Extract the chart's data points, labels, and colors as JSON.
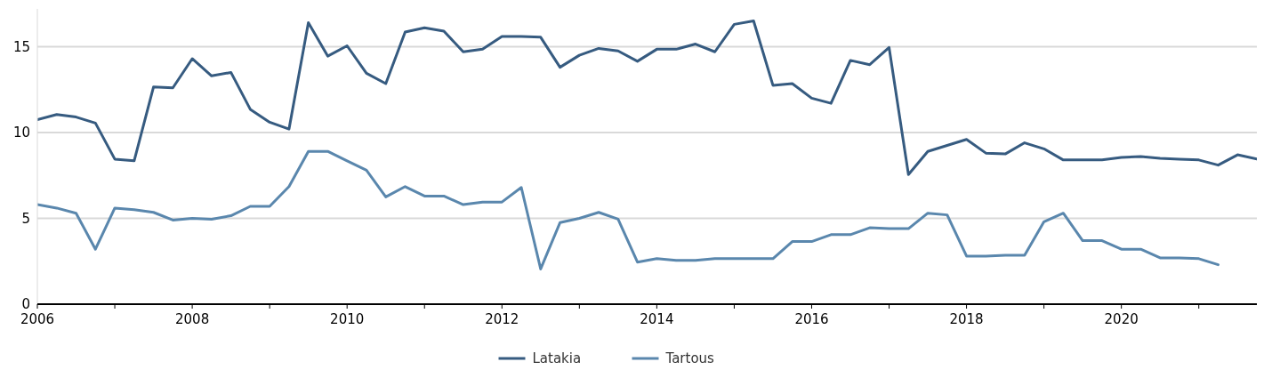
{
  "chart_data": {
    "type": "line",
    "x": [
      2006,
      2006.25,
      2006.5,
      2006.75,
      2007,
      2007.25,
      2007.5,
      2007.75,
      2008,
      2008.25,
      2008.5,
      2008.75,
      2009,
      2009.25,
      2009.5,
      2009.75,
      2010,
      2010.25,
      2010.5,
      2010.75,
      2011,
      2011.25,
      2011.5,
      2011.75,
      2012,
      2012.25,
      2012.5,
      2012.75,
      2013,
      2013.25,
      2013.5,
      2013.75,
      2014,
      2014.25,
      2014.5,
      2014.75,
      2015,
      2015.25,
      2015.5,
      2015.75,
      2016,
      2016.25,
      2016.5,
      2016.75,
      2017,
      2017.25,
      2017.5,
      2017.75,
      2018,
      2018.25,
      2018.5,
      2018.75,
      2019,
      2019.25,
      2019.5,
      2019.75,
      2020,
      2020.25,
      2020.5,
      2020.75,
      2021,
      2021.25,
      2021.5,
      2021.75
    ],
    "series": [
      {
        "name": "Latakia",
        "color": "#365b80",
        "values": [
          10.75,
          11.05,
          10.9,
          10.55,
          8.45,
          8.35,
          12.65,
          12.6,
          14.3,
          13.3,
          13.5,
          11.35,
          10.6,
          10.2,
          16.4,
          14.45,
          15.05,
          13.45,
          12.85,
          15.85,
          16.1,
          15.9,
          14.7,
          14.85,
          15.6,
          15.6,
          15.55,
          13.8,
          14.5,
          14.9,
          14.75,
          14.15,
          14.85,
          14.85,
          15.15,
          14.7,
          16.3,
          16.5,
          12.75,
          12.85,
          12.0,
          11.7,
          14.2,
          13.95,
          14.95,
          7.55,
          8.9,
          9.25,
          9.6,
          8.8,
          8.75,
          9.4,
          9.05,
          8.4,
          8.4,
          8.4,
          8.55,
          8.6,
          8.5,
          8.45,
          8.4,
          8.1,
          8.7,
          8.45
        ]
      },
      {
        "name": "Tartous",
        "color": "#5a87ad",
        "values": [
          5.8,
          5.6,
          5.3,
          3.2,
          5.6,
          5.5,
          5.35,
          4.9,
          5.0,
          4.95,
          5.15,
          5.7,
          5.7,
          6.85,
          8.9,
          8.9,
          8.35,
          7.8,
          6.25,
          6.85,
          6.3,
          6.3,
          5.8,
          5.95,
          5.95,
          6.8,
          2.05,
          4.75,
          5.0,
          5.35,
          4.95,
          2.45,
          2.65,
          2.55,
          2.55,
          2.65,
          2.65,
          2.65,
          2.65,
          3.65,
          3.65,
          4.05,
          4.05,
          4.45,
          4.4,
          4.4,
          5.3,
          5.2,
          2.8,
          2.8,
          2.85,
          2.85,
          4.8,
          5.3,
          3.7,
          3.7,
          3.2,
          3.2,
          2.7,
          2.7,
          2.65,
          2.3,
          null,
          null
        ]
      }
    ],
    "xlim": [
      2006,
      2021.75
    ],
    "xticks": [
      2006,
      {
        "value": 2007,
        "label": null
      },
      2008,
      {
        "value": 2009,
        "label": null
      },
      2010,
      {
        "value": 2011,
        "label": null
      },
      2012,
      {
        "value": 2013,
        "label": null
      },
      2014,
      {
        "value": 2015,
        "label": null
      },
      2016,
      {
        "value": 2017,
        "label": null
      },
      2018,
      {
        "value": 2019,
        "label": null
      },
      2020,
      {
        "value": 2021,
        "label": null
      }
    ],
    "ylim": [
      0,
      17.2
    ],
    "yticks": [
      0,
      5,
      10,
      15
    ],
    "grid": "y",
    "legend": "bottom",
    "line_style": "solid",
    "marker": "none"
  }
}
